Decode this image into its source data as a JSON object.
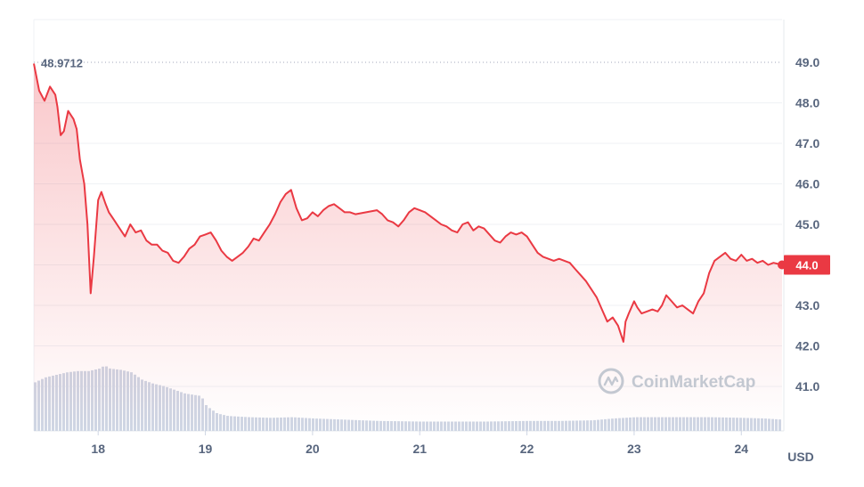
{
  "chart_data": {
    "type": "line",
    "ylabel_unit": "USD",
    "ylim": [
      40.0,
      49.5
    ],
    "y_ticks": [
      "49.0",
      "48.0",
      "47.0",
      "46.0",
      "45.0",
      "44.0",
      "43.0",
      "42.0",
      "41.0"
    ],
    "x_ticks": [
      "18",
      "19",
      "20",
      "21",
      "22",
      "23",
      "24"
    ],
    "high_label": "48.9712",
    "high_value": 48.9712,
    "current_label": "44.0",
    "current_value": 44.0,
    "watermark": "CoinMarketCap",
    "colors": {
      "line": "#ea3943",
      "area_top": "#ea3943",
      "volume": "#cfd6e4",
      "grid": "#eff2f5",
      "badge_bg": "#ea3943",
      "badge_text": "#ffffff"
    },
    "price_series": [
      [
        17.4,
        48.97
      ],
      [
        17.45,
        48.3
      ],
      [
        17.5,
        48.05
      ],
      [
        17.55,
        48.4
      ],
      [
        17.6,
        48.2
      ],
      [
        17.62,
        47.9
      ],
      [
        17.65,
        47.2
      ],
      [
        17.68,
        47.3
      ],
      [
        17.72,
        47.8
      ],
      [
        17.77,
        47.6
      ],
      [
        17.8,
        47.35
      ],
      [
        17.83,
        46.6
      ],
      [
        17.87,
        46.0
      ],
      [
        17.9,
        45.0
      ],
      [
        17.93,
        43.3
      ],
      [
        17.96,
        44.2
      ],
      [
        18.0,
        45.6
      ],
      [
        18.03,
        45.8
      ],
      [
        18.07,
        45.5
      ],
      [
        18.1,
        45.3
      ],
      [
        18.15,
        45.1
      ],
      [
        18.2,
        44.9
      ],
      [
        18.25,
        44.7
      ],
      [
        18.3,
        45.0
      ],
      [
        18.35,
        44.8
      ],
      [
        18.4,
        44.85
      ],
      [
        18.45,
        44.6
      ],
      [
        18.5,
        44.5
      ],
      [
        18.55,
        44.5
      ],
      [
        18.6,
        44.35
      ],
      [
        18.65,
        44.3
      ],
      [
        18.7,
        44.1
      ],
      [
        18.75,
        44.05
      ],
      [
        18.8,
        44.2
      ],
      [
        18.85,
        44.4
      ],
      [
        18.9,
        44.5
      ],
      [
        18.95,
        44.7
      ],
      [
        19.0,
        44.75
      ],
      [
        19.05,
        44.8
      ],
      [
        19.1,
        44.6
      ],
      [
        19.15,
        44.35
      ],
      [
        19.2,
        44.2
      ],
      [
        19.25,
        44.1
      ],
      [
        19.3,
        44.2
      ],
      [
        19.35,
        44.3
      ],
      [
        19.4,
        44.45
      ],
      [
        19.45,
        44.65
      ],
      [
        19.5,
        44.6
      ],
      [
        19.55,
        44.8
      ],
      [
        19.6,
        45.0
      ],
      [
        19.65,
        45.25
      ],
      [
        19.7,
        45.55
      ],
      [
        19.75,
        45.75
      ],
      [
        19.8,
        45.85
      ],
      [
        19.85,
        45.4
      ],
      [
        19.9,
        45.1
      ],
      [
        19.95,
        45.15
      ],
      [
        20.0,
        45.3
      ],
      [
        20.05,
        45.2
      ],
      [
        20.1,
        45.35
      ],
      [
        20.15,
        45.45
      ],
      [
        20.2,
        45.5
      ],
      [
        20.25,
        45.4
      ],
      [
        20.3,
        45.3
      ],
      [
        20.35,
        45.3
      ],
      [
        20.4,
        45.25
      ],
      [
        20.5,
        45.3
      ],
      [
        20.6,
        45.35
      ],
      [
        20.65,
        45.25
      ],
      [
        20.7,
        45.1
      ],
      [
        20.75,
        45.05
      ],
      [
        20.8,
        44.95
      ],
      [
        20.85,
        45.1
      ],
      [
        20.9,
        45.3
      ],
      [
        20.95,
        45.4
      ],
      [
        21.0,
        45.35
      ],
      [
        21.05,
        45.3
      ],
      [
        21.1,
        45.2
      ],
      [
        21.15,
        45.1
      ],
      [
        21.2,
        45.0
      ],
      [
        21.25,
        44.95
      ],
      [
        21.3,
        44.85
      ],
      [
        21.35,
        44.8
      ],
      [
        21.4,
        45.0
      ],
      [
        21.45,
        45.05
      ],
      [
        21.5,
        44.85
      ],
      [
        21.55,
        44.95
      ],
      [
        21.6,
        44.9
      ],
      [
        21.65,
        44.75
      ],
      [
        21.7,
        44.6
      ],
      [
        21.75,
        44.55
      ],
      [
        21.8,
        44.7
      ],
      [
        21.85,
        44.8
      ],
      [
        21.9,
        44.75
      ],
      [
        21.95,
        44.8
      ],
      [
        22.0,
        44.7
      ],
      [
        22.05,
        44.5
      ],
      [
        22.1,
        44.3
      ],
      [
        22.15,
        44.2
      ],
      [
        22.2,
        44.15
      ],
      [
        22.25,
        44.1
      ],
      [
        22.3,
        44.15
      ],
      [
        22.35,
        44.1
      ],
      [
        22.4,
        44.05
      ],
      [
        22.45,
        43.9
      ],
      [
        22.5,
        43.75
      ],
      [
        22.55,
        43.6
      ],
      [
        22.6,
        43.4
      ],
      [
        22.65,
        43.2
      ],
      [
        22.7,
        42.9
      ],
      [
        22.75,
        42.6
      ],
      [
        22.8,
        42.7
      ],
      [
        22.85,
        42.5
      ],
      [
        22.9,
        42.1
      ],
      [
        22.92,
        42.6
      ],
      [
        22.95,
        42.8
      ],
      [
        23.0,
        43.1
      ],
      [
        23.03,
        42.95
      ],
      [
        23.07,
        42.8
      ],
      [
        23.12,
        42.85
      ],
      [
        23.17,
        42.9
      ],
      [
        23.22,
        42.85
      ],
      [
        23.26,
        43.0
      ],
      [
        23.3,
        43.25
      ],
      [
        23.35,
        43.1
      ],
      [
        23.4,
        42.95
      ],
      [
        23.45,
        43.0
      ],
      [
        23.5,
        42.9
      ],
      [
        23.55,
        42.8
      ],
      [
        23.6,
        43.1
      ],
      [
        23.65,
        43.3
      ],
      [
        23.7,
        43.8
      ],
      [
        23.75,
        44.1
      ],
      [
        23.8,
        44.2
      ],
      [
        23.85,
        44.3
      ],
      [
        23.9,
        44.15
      ],
      [
        23.95,
        44.1
      ],
      [
        24.0,
        44.25
      ],
      [
        24.05,
        44.1
      ],
      [
        24.1,
        44.15
      ],
      [
        24.15,
        44.05
      ],
      [
        24.2,
        44.1
      ],
      [
        24.25,
        44.0
      ],
      [
        24.3,
        44.05
      ],
      [
        24.38,
        44.0
      ]
    ],
    "volume_series": [
      [
        17.4,
        0.78
      ],
      [
        17.5,
        0.86
      ],
      [
        17.6,
        0.9
      ],
      [
        17.7,
        0.94
      ],
      [
        17.8,
        0.96
      ],
      [
        17.9,
        0.96
      ],
      [
        18.0,
        1.0
      ],
      [
        18.05,
        1.05
      ],
      [
        18.1,
        1.0
      ],
      [
        18.2,
        0.98
      ],
      [
        18.3,
        0.94
      ],
      [
        18.35,
        0.88
      ],
      [
        18.4,
        0.82
      ],
      [
        18.5,
        0.76
      ],
      [
        18.6,
        0.72
      ],
      [
        18.7,
        0.66
      ],
      [
        18.8,
        0.6
      ],
      [
        18.95,
        0.56
      ],
      [
        19.0,
        0.4
      ],
      [
        19.1,
        0.28
      ],
      [
        19.2,
        0.24
      ],
      [
        19.4,
        0.22
      ],
      [
        19.6,
        0.21
      ],
      [
        19.8,
        0.22
      ],
      [
        20.0,
        0.2
      ],
      [
        20.3,
        0.18
      ],
      [
        20.6,
        0.16
      ],
      [
        21.0,
        0.15
      ],
      [
        21.3,
        0.15
      ],
      [
        21.6,
        0.15
      ],
      [
        22.0,
        0.16
      ],
      [
        22.3,
        0.16
      ],
      [
        22.6,
        0.17
      ],
      [
        22.8,
        0.2
      ],
      [
        23.0,
        0.22
      ],
      [
        23.3,
        0.22
      ],
      [
        23.5,
        0.22
      ],
      [
        23.7,
        0.22
      ],
      [
        24.0,
        0.21
      ],
      [
        24.2,
        0.2
      ],
      [
        24.38,
        0.18
      ]
    ]
  }
}
